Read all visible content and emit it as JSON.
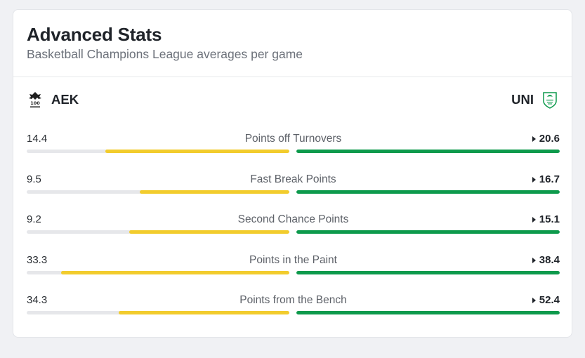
{
  "header": {
    "title": "Advanced Stats",
    "subtitle": "Basketball Champions League averages per game"
  },
  "teams": {
    "home": {
      "name": "AEK",
      "logo_icon": "aek-crest-icon",
      "color": "#f2cc2d"
    },
    "away": {
      "name": "UNI",
      "logo_icon": "uni-shield-icon",
      "color": "#0d9a4c"
    }
  },
  "stats": [
    {
      "label": "Points off Turnovers",
      "home": "14.4",
      "away": "20.6",
      "home_fill": 0.7,
      "away_fill": 1.0
    },
    {
      "label": "Fast Break Points",
      "home": "9.5",
      "away": "16.7",
      "home_fill": 0.57,
      "away_fill": 1.0
    },
    {
      "label": "Second Chance Points",
      "home": "9.2",
      "away": "15.1",
      "home_fill": 0.61,
      "away_fill": 1.0
    },
    {
      "label": "Points in the Paint",
      "home": "33.3",
      "away": "38.4",
      "home_fill": 0.87,
      "away_fill": 1.0
    },
    {
      "label": "Points from the Bench",
      "home": "34.3",
      "away": "52.4",
      "home_fill": 0.65,
      "away_fill": 1.0
    }
  ]
}
